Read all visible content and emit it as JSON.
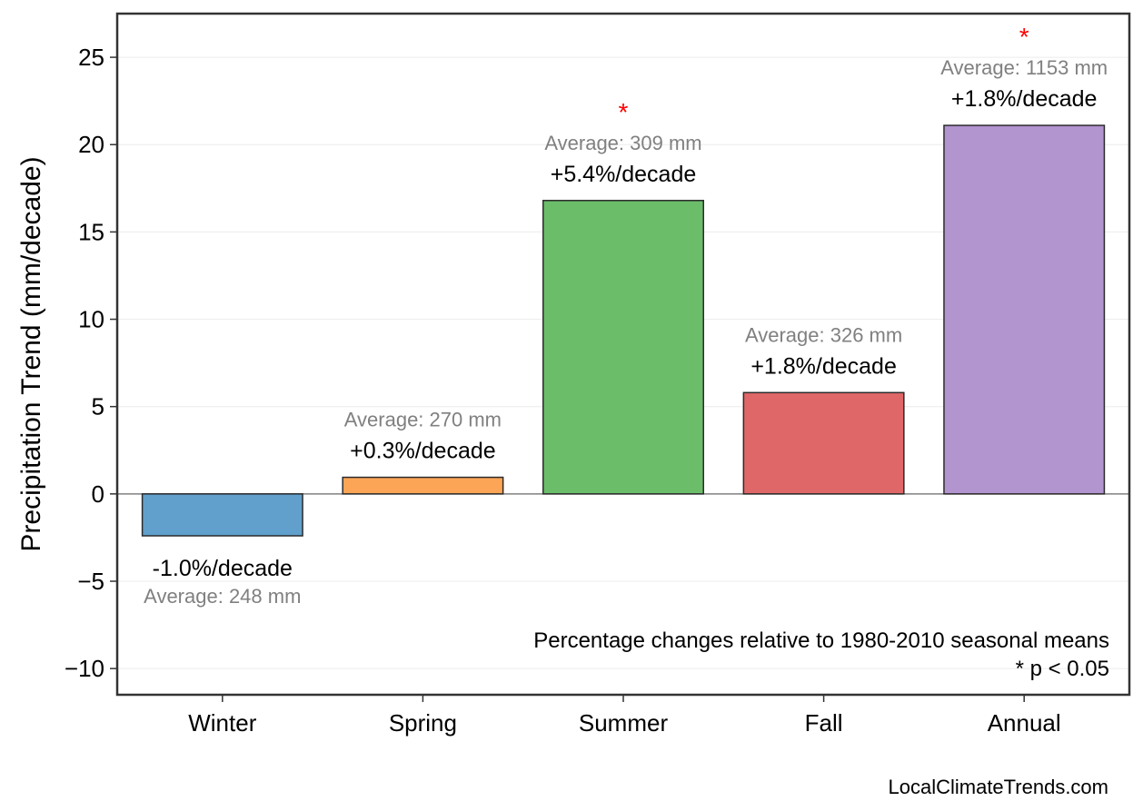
{
  "credit": "LocalClimateTrends.com",
  "chart_data": {
    "type": "bar",
    "categories": [
      "Winter",
      "Spring",
      "Summer",
      "Fall",
      "Annual"
    ],
    "values": [
      -2.4,
      0.95,
      16.8,
      5.8,
      21.1
    ],
    "colors": [
      "#61a0cc",
      "#fda556",
      "#6bbd6a",
      "#e06768",
      "#b294cf"
    ],
    "pct_labels": [
      "-1.0%/decade",
      "+0.3%/decade",
      "+5.4%/decade",
      "+1.8%/decade",
      "+1.8%/decade"
    ],
    "avg_labels": [
      "Average: 248 mm",
      "Average: 270 mm",
      "Average: 309 mm",
      "Average: 326 mm",
      "Average: 1153 mm"
    ],
    "significant": [
      false,
      false,
      true,
      false,
      true
    ],
    "significance_marker": "*",
    "ylabel": "Precipitation Trend (mm/decade)",
    "xlabel": "",
    "ylim": [
      -11.5,
      27.5
    ],
    "yticks": [
      -10,
      -5,
      0,
      5,
      10,
      15,
      20,
      25
    ],
    "ytick_labels": [
      "−10",
      "−5",
      "0",
      "5",
      "10",
      "15",
      "20",
      "25"
    ],
    "grid": true,
    "notes": [
      "Percentage changes relative to 1980-2010 seasonal means",
      "* p < 0.05"
    ]
  }
}
